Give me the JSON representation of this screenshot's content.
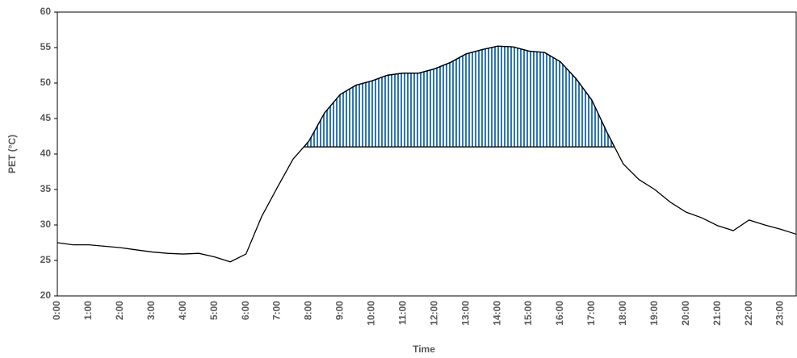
{
  "chart_data": {
    "type": "line",
    "x_label": "Time",
    "y_label": "PET (°C)",
    "categories": [
      "0:00",
      null,
      "1:00",
      null,
      "2:00",
      null,
      "3:00",
      null,
      "4:00",
      null,
      "5:00",
      null,
      "6:00",
      null,
      "7:00",
      null,
      "8:00",
      null,
      "9:00",
      null,
      "10:00",
      null,
      "11:00",
      null,
      "12:00",
      null,
      "13:00",
      null,
      "14:00",
      null,
      "15:00",
      null,
      "16:00",
      null,
      "17:00",
      null,
      "18:00",
      null,
      "19:00",
      null,
      "20:00",
      null,
      "21:00",
      null,
      "22:00",
      null,
      "23:00",
      null
    ],
    "values": [
      27.5,
      27.2,
      27.2,
      27.0,
      26.8,
      26.5,
      26.2,
      26.0,
      25.9,
      26.0,
      25.5,
      24.8,
      25.9,
      31.2,
      35.3,
      39.3,
      41.8,
      45.8,
      48.4,
      49.7,
      50.3,
      51.1,
      51.4,
      51.4,
      52.0,
      52.9,
      54.1,
      54.7,
      55.2,
      55.1,
      54.5,
      54.3,
      53.0,
      50.6,
      47.6,
      42.9,
      38.6,
      36.4,
      35.0,
      33.2,
      31.8,
      31.0,
      29.9,
      29.2,
      30.7,
      30.0,
      29.4,
      28.7
    ],
    "color": "#000000",
    "threshold": 41,
    "threshold_fill": "#2e75b6",
    "ylim": [
      20,
      60
    ],
    "yticks": [
      20,
      25,
      30,
      35,
      40,
      45,
      50,
      55,
      60
    ],
    "grid": false
  }
}
